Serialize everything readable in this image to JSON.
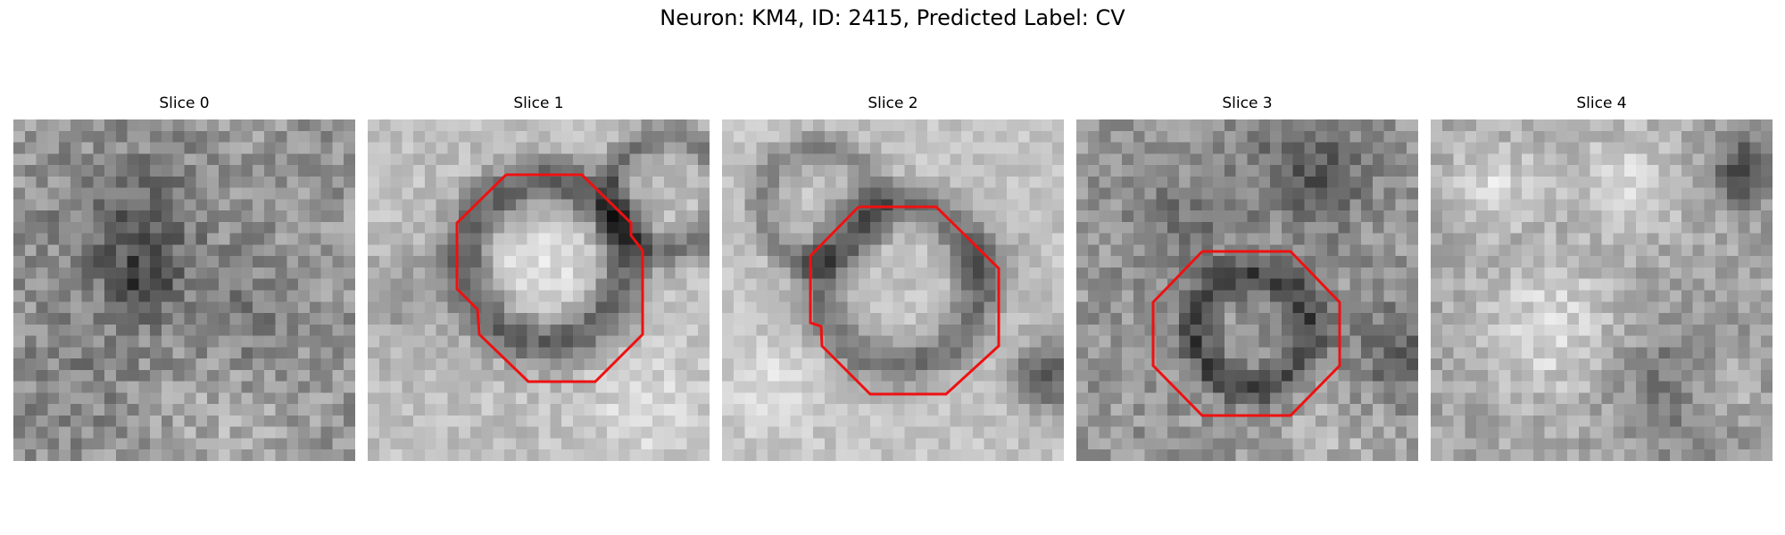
{
  "figure": {
    "title": "Neuron: KM4, ID: 2415, Predicted Label: CV"
  },
  "panels": [
    {
      "title": "Slice 0",
      "has_outline": false
    },
    {
      "title": "Slice 1",
      "has_outline": true
    },
    {
      "title": "Slice 2",
      "has_outline": true
    },
    {
      "title": "Slice 3",
      "has_outline": true
    },
    {
      "title": "Slice 4",
      "has_outline": false
    }
  ],
  "colors": {
    "outline": "#ee1111",
    "background": "#ffffff"
  },
  "image_style": "grayscale-pixelated-em-crop"
}
